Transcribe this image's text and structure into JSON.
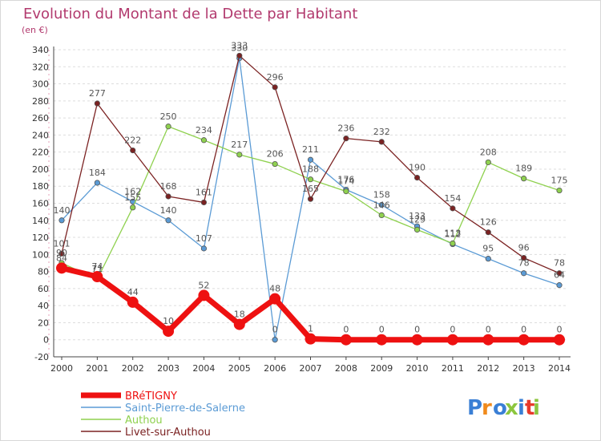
{
  "chart_data": {
    "type": "line",
    "title": "Evolution du Montant de la Dette par Habitant",
    "subtitle": "(en €)",
    "x": [
      "2000",
      "2001",
      "2002",
      "2003",
      "2004",
      "2005",
      "2006",
      "2007",
      "2008",
      "2009",
      "2010",
      "2011",
      "2012",
      "2013",
      "2014"
    ],
    "ylim": [
      -20,
      340
    ],
    "yticks": [
      -20,
      0,
      20,
      40,
      60,
      80,
      100,
      120,
      140,
      160,
      180,
      200,
      220,
      240,
      260,
      280,
      300,
      320,
      340
    ],
    "grid": "horizontal dashed",
    "legend_position": "bottom-left",
    "series": [
      {
        "name": "BRéTIGNY",
        "color": "#ee1111",
        "values": [
          84,
          74,
          44,
          10,
          52,
          18,
          48,
          1,
          0,
          0,
          0,
          0,
          0,
          0,
          0
        ]
      },
      {
        "name": "Saint-Pierre-de-Salerne",
        "color": "#5b9bd5",
        "values": [
          140,
          184,
          162,
          140,
          107,
          330,
          0,
          211,
          176,
          158,
          133,
          112,
          95,
          78,
          64
        ]
      },
      {
        "name": "Authou",
        "color": "#8fd14f",
        "values": [
          90,
          71,
          155,
          250,
          234,
          217,
          206,
          188,
          174,
          146,
          129,
          113,
          208,
          189,
          175
        ]
      },
      {
        "name": "Livet-sur-Authou",
        "color": "#7b2222",
        "values": [
          101,
          277,
          222,
          168,
          161,
          333,
          296,
          165,
          236,
          232,
          190,
          154,
          126,
          96,
          78
        ]
      }
    ],
    "data_labels": [
      {
        "x": "2000",
        "text": "140"
      },
      {
        "x": "2000",
        "text": "101"
      },
      {
        "x": "2000",
        "text": "90"
      },
      {
        "x": "2000",
        "text": "84"
      },
      {
        "x": "2001",
        "text": "277"
      },
      {
        "x": "2001",
        "text": "184"
      },
      {
        "x": "2001",
        "text": "74"
      },
      {
        "x": "2001",
        "text": "71"
      },
      {
        "x": "2002",
        "text": "222"
      },
      {
        "x": "2002",
        "text": "162"
      },
      {
        "x": "2002",
        "text": "155"
      },
      {
        "x": "2002",
        "text": "44"
      },
      {
        "x": "2003",
        "text": "250"
      },
      {
        "x": "2003",
        "text": "168"
      },
      {
        "x": "2003",
        "text": "140"
      },
      {
        "x": "2003",
        "text": "10"
      },
      {
        "x": "2004",
        "text": "234"
      },
      {
        "x": "2004",
        "text": "161"
      },
      {
        "x": "2004",
        "text": "107"
      },
      {
        "x": "2004",
        "text": "52"
      },
      {
        "x": "2005",
        "text": "333"
      },
      {
        "x": "2005",
        "text": "330"
      },
      {
        "x": "2005",
        "text": "217"
      },
      {
        "x": "2005",
        "text": "18"
      },
      {
        "x": "2006",
        "text": "296"
      },
      {
        "x": "2006",
        "text": "206"
      },
      {
        "x": "2006",
        "text": "48"
      },
      {
        "x": "2006",
        "text": "0"
      },
      {
        "x": "2007",
        "text": "211"
      },
      {
        "x": "2007",
        "text": "188"
      },
      {
        "x": "2007",
        "text": "165"
      },
      {
        "x": "2007",
        "text": "1"
      },
      {
        "x": "2008",
        "text": "236"
      },
      {
        "x": "2008",
        "text": "176"
      },
      {
        "x": "2008",
        "text": "174"
      },
      {
        "x": "2008",
        "text": "0"
      },
      {
        "x": "2009",
        "text": "232"
      },
      {
        "x": "2009",
        "text": "158"
      },
      {
        "x": "2009",
        "text": "146"
      },
      {
        "x": "2009",
        "text": "0"
      },
      {
        "x": "2010",
        "text": "190"
      },
      {
        "x": "2010",
        "text": "133"
      },
      {
        "x": "2010",
        "text": "129"
      },
      {
        "x": "2010",
        "text": "0"
      },
      {
        "x": "2011",
        "text": "154"
      },
      {
        "x": "2011",
        "text": "113"
      },
      {
        "x": "2011",
        "text": "112"
      },
      {
        "x": "2011",
        "text": "0"
      },
      {
        "x": "2012",
        "text": "208"
      },
      {
        "x": "2012",
        "text": "126"
      },
      {
        "x": "2012",
        "text": "95"
      },
      {
        "x": "2012",
        "text": "0"
      },
      {
        "x": "2013",
        "text": "189"
      },
      {
        "x": "2013",
        "text": "96"
      },
      {
        "x": "2013",
        "text": "78"
      },
      {
        "x": "2013",
        "text": "0"
      },
      {
        "x": "2014",
        "text": "175"
      },
      {
        "x": "2014",
        "text": "78"
      },
      {
        "x": "2014",
        "text": "64"
      },
      {
        "x": "2014",
        "text": "0"
      }
    ]
  },
  "logo": {
    "text": "Proxiti",
    "colors": [
      "#3a7fd5",
      "#f08a1c",
      "#3a7fd5",
      "#8cc63f",
      "#3a7fd5",
      "#e8392a",
      "#8cc63f"
    ]
  }
}
